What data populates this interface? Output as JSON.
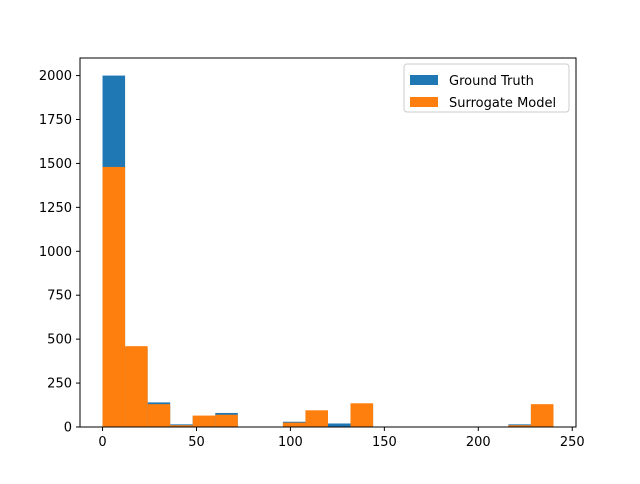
{
  "chart_data": {
    "type": "bar",
    "title": "",
    "xlabel": "",
    "ylabel": "",
    "bin_edges": [
      0,
      12,
      24,
      36,
      48,
      60,
      72,
      84,
      96,
      108,
      120,
      132,
      144,
      156,
      168,
      180,
      192,
      204,
      216,
      228,
      240
    ],
    "xlim": [
      -12,
      252
    ],
    "ylim": [
      0,
      2100
    ],
    "xticks": [
      0,
      50,
      100,
      150,
      200,
      250
    ],
    "yticks": [
      0,
      250,
      500,
      750,
      1000,
      1250,
      1500,
      1750,
      2000
    ],
    "grid": false,
    "legend_position": "upper-right",
    "series": [
      {
        "name": "Ground Truth",
        "color": "#1f77b4",
        "values": [
          2000,
          450,
          140,
          15,
          60,
          80,
          0,
          0,
          30,
          90,
          20,
          130,
          0,
          0,
          0,
          0,
          0,
          0,
          15,
          125
        ]
      },
      {
        "name": "Surrogate Model",
        "color": "#ff7f0e",
        "values": [
          1480,
          460,
          130,
          10,
          65,
          70,
          0,
          0,
          25,
          95,
          0,
          135,
          0,
          0,
          0,
          0,
          0,
          0,
          10,
          130
        ]
      }
    ]
  }
}
